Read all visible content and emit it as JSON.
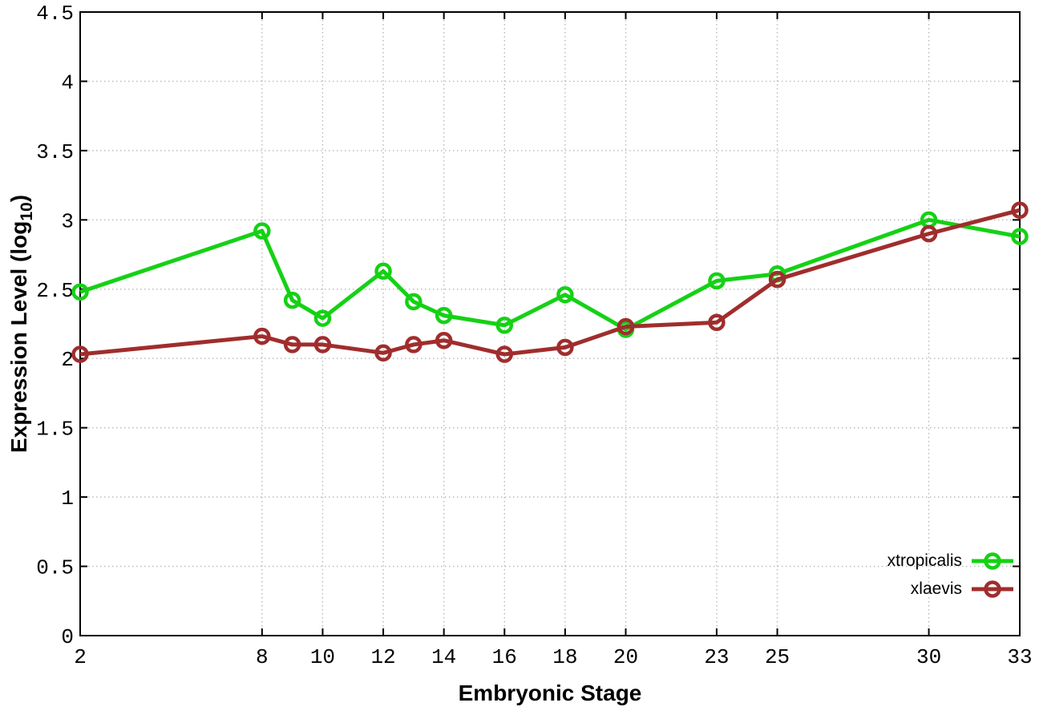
{
  "chart_data": {
    "type": "line",
    "title": "",
    "xlabel": "Embryonic Stage",
    "ylabel": "Expression Level (log10)",
    "ylabel_parts": {
      "prefix": "Expression Level (log",
      "sub": "10",
      "suffix": ")"
    },
    "x": [
      2,
      8,
      9,
      10,
      12,
      13,
      14,
      16,
      18,
      20,
      23,
      25,
      30,
      33
    ],
    "series": [
      {
        "name": "xtropicalis",
        "color": "#15d115",
        "values": [
          2.48,
          2.92,
          2.42,
          2.29,
          2.63,
          2.41,
          2.31,
          2.24,
          2.46,
          2.21,
          2.56,
          2.61,
          3.0,
          2.88
        ]
      },
      {
        "name": "xlaevis",
        "color": "#a02d2d",
        "values": [
          2.03,
          2.16,
          2.1,
          2.1,
          2.04,
          2.1,
          2.13,
          2.03,
          2.08,
          2.23,
          2.26,
          2.57,
          2.9,
          3.07
        ]
      }
    ],
    "xlim": [
      2,
      33
    ],
    "ylim": [
      0,
      4.5
    ],
    "xticks": [
      2,
      8,
      10,
      12,
      14,
      16,
      18,
      20,
      23,
      25,
      30,
      33
    ],
    "yticks": [
      0,
      0.5,
      1,
      1.5,
      2,
      2.5,
      3,
      3.5,
      4,
      4.5
    ],
    "grid": true,
    "legend_position": "bottom-right",
    "colors": {
      "background": "#ffffff",
      "grid": "#b8b8b8",
      "axis": "#000000",
      "tick_text": "#000000"
    }
  }
}
